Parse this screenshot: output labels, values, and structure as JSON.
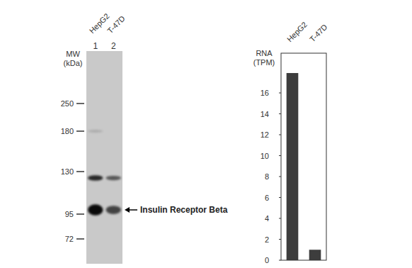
{
  "blot": {
    "mw_label": "MW (kDa)",
    "markers": [
      250,
      180,
      130,
      95,
      72
    ],
    "lanes": [
      {
        "name": "HepG2",
        "number": "1",
        "bands": [
          {
            "kda": 180,
            "intensity": 0.15
          },
          {
            "kda": 124,
            "intensity": 0.85
          },
          {
            "kda": 98,
            "intensity": 1
          }
        ]
      },
      {
        "name": "T-47D",
        "number": "2",
        "bands": [
          {
            "kda": 124,
            "intensity": 0.6
          },
          {
            "kda": 98,
            "intensity": 0.7
          }
        ]
      }
    ],
    "annotation": "Insulin Receptor Beta",
    "annotation_kda": 98
  },
  "chart_data": {
    "type": "bar",
    "categories": [
      "HepG2",
      "T-47D"
    ],
    "values": [
      17.9,
      1.0
    ],
    "color": "#3d3d3d",
    "y_label": "RNA (TPM)",
    "ylim": [
      0,
      19.8
    ],
    "yticks": [
      0,
      2,
      4,
      6,
      8,
      10,
      12,
      14,
      16
    ],
    "grid": false
  }
}
